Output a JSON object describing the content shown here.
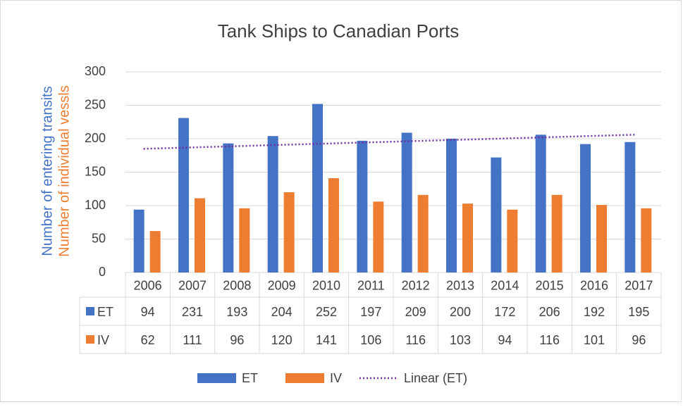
{
  "chart_data": {
    "type": "bar",
    "title": "Tank Ships to Canadian Ports",
    "y_axis_labels": [
      "Number of entering transits",
      "Number of individual vessls"
    ],
    "categories": [
      "2006",
      "2007",
      "2008",
      "2009",
      "2010",
      "2011",
      "2012",
      "2013",
      "2014",
      "2015",
      "2016",
      "2017"
    ],
    "series": [
      {
        "name": "ET",
        "color": "#4472c4",
        "values": [
          94,
          231,
          193,
          204,
          252,
          197,
          209,
          200,
          172,
          206,
          192,
          195
        ]
      },
      {
        "name": "IV",
        "color": "#ed7d31",
        "values": [
          62,
          111,
          96,
          120,
          141,
          106,
          116,
          103,
          94,
          116,
          101,
          96
        ]
      }
    ],
    "trendline": {
      "name": "Linear (ET)",
      "series": 0,
      "color": "#7030a0"
    },
    "ylim": [
      0,
      300
    ],
    "yticks": [
      0,
      50,
      100,
      150,
      200,
      250,
      300
    ],
    "grid": true,
    "data_table": true,
    "legend": "bottom"
  }
}
